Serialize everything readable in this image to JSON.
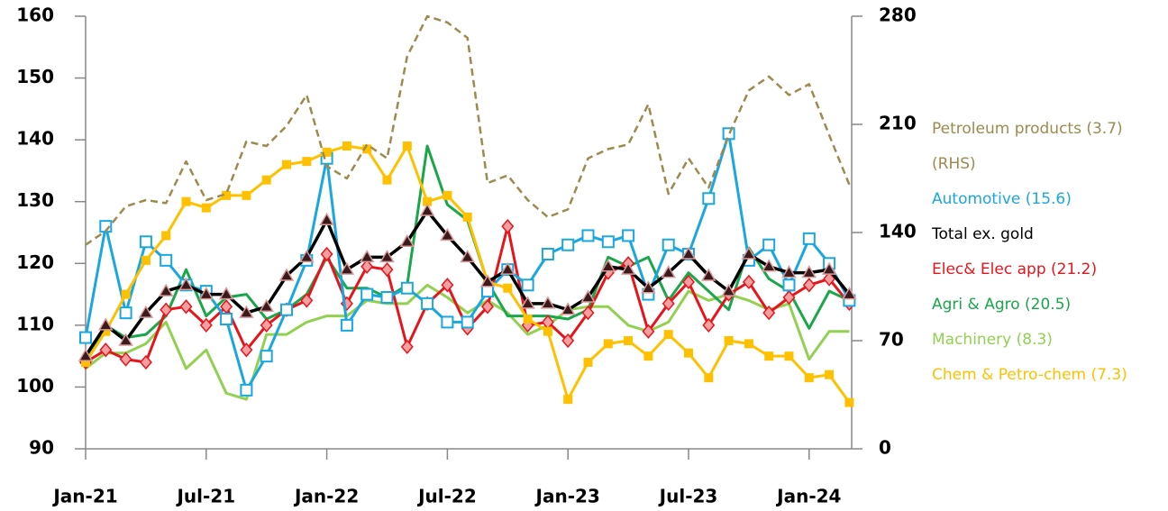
{
  "chart_data": {
    "type": "line",
    "categories": [
      "Jan-21",
      null,
      null,
      null,
      null,
      null,
      "Jul-21",
      null,
      null,
      null,
      null,
      null,
      "Jan-22",
      null,
      null,
      null,
      null,
      null,
      "Jul-22",
      null,
      null,
      null,
      null,
      null,
      "Jan-23",
      null,
      null,
      null,
      null,
      null,
      "Jul-23",
      null,
      null,
      null,
      null,
      null,
      "Jan-24",
      null,
      null
    ],
    "ylim": [
      90,
      160
    ],
    "yticks": [
      90,
      100,
      110,
      120,
      130,
      140,
      150,
      160
    ],
    "y2lim": [
      0,
      280
    ],
    "y2ticks": [
      0,
      70,
      140,
      210,
      280
    ],
    "series": [
      {
        "name": "Petroleum products (3.7) (RHS)",
        "color": "#9c8a4f",
        "axis": "y2",
        "dash": true,
        "marker": "none",
        "values": [
          132,
          141,
          157,
          161,
          159,
          186,
          161,
          165,
          199,
          196,
          209,
          229,
          183,
          175,
          197,
          188,
          254,
          280,
          276,
          266,
          172,
          177,
          161,
          150,
          155,
          188,
          194,
          197,
          223,
          165,
          188,
          169,
          203,
          232,
          241,
          229,
          236,
          203,
          171
        ]
      },
      {
        "name": "Automotive (15.6)",
        "color": "#1aa7e0",
        "marker": "square-open",
        "values": [
          108,
          126,
          112,
          123.5,
          120.5,
          116.5,
          115.5,
          111,
          99.5,
          105,
          112.5,
          120.5,
          137,
          110,
          115,
          114.5,
          116,
          113.5,
          110.5,
          110.5,
          115.5,
          119,
          116.5,
          121.5,
          123,
          124.5,
          123.5,
          124.5,
          115,
          123,
          121.5,
          130.5,
          141,
          120.5,
          123,
          116.5,
          124,
          120,
          114
        ]
      },
      {
        "name": "Total ex. gold",
        "color": "#000000",
        "marker": "triangle",
        "values": [
          105,
          110,
          107.5,
          112,
          115.5,
          116.5,
          115,
          115,
          112,
          113,
          118,
          121,
          127,
          119,
          121,
          121,
          123.5,
          128.5,
          124.5,
          121,
          117,
          119,
          113.5,
          113.5,
          112.5,
          114.5,
          119.5,
          119,
          116,
          118.5,
          121.5,
          118,
          115.5,
          121.5,
          119.5,
          118.5,
          118.5,
          119,
          115
        ]
      },
      {
        "name": "Elec& Elec app (21.2)",
        "color": "#e8141c",
        "marker": "diamond",
        "values": [
          104,
          106,
          104.5,
          104,
          112.5,
          113,
          110,
          113,
          106,
          110,
          112.5,
          114,
          121.5,
          113.5,
          119.5,
          119,
          106.5,
          113.5,
          116.5,
          109.5,
          113,
          126,
          110,
          110.5,
          107.5,
          112,
          118.5,
          120,
          109,
          113.5,
          117,
          110,
          115,
          117,
          112,
          114.5,
          116.5,
          117.5,
          113.5
        ]
      },
      {
        "name": "Agri & Agro (20.5)",
        "color": "#1aa64a",
        "marker": "none",
        "values": [
          104,
          110,
          108,
          108.5,
          111.5,
          119,
          111.5,
          114.5,
          115,
          111,
          112.5,
          115,
          121,
          116,
          116,
          114.5,
          116.5,
          139,
          129.5,
          127,
          117,
          111.5,
          111.5,
          111.5,
          111,
          112.5,
          121,
          119.5,
          121,
          114,
          118.5,
          115.5,
          112.5,
          122.5,
          117.5,
          115.5,
          109.5,
          115.5,
          114
        ]
      },
      {
        "name": "Machinery (8.3)",
        "color": "#92d050",
        "marker": "none",
        "values": [
          103,
          105.5,
          105.5,
          107,
          110.5,
          103,
          106,
          99,
          98,
          108.5,
          108.5,
          110.5,
          111.5,
          111.5,
          114,
          113.5,
          113.5,
          116.5,
          114.5,
          112,
          114,
          112,
          108.5,
          110,
          112.5,
          113,
          113,
          110,
          109,
          110.5,
          115.5,
          114,
          115,
          114,
          112.5,
          113.5,
          104.5,
          109,
          109
        ]
      },
      {
        "name": "Chem & Petro-chem (7.3)",
        "color": "#ffc000",
        "marker": "square",
        "values": [
          104,
          109,
          115,
          120.5,
          124.5,
          130,
          129,
          131,
          131,
          133.5,
          136,
          136.5,
          138,
          139,
          138.5,
          133.5,
          139,
          130,
          131,
          127.5,
          117,
          116,
          111,
          109,
          98,
          104,
          107,
          107.5,
          105,
          108.5,
          105.5,
          101.5,
          107.5,
          107,
          105,
          105,
          101.5,
          102,
          97.5
        ]
      }
    ]
  }
}
